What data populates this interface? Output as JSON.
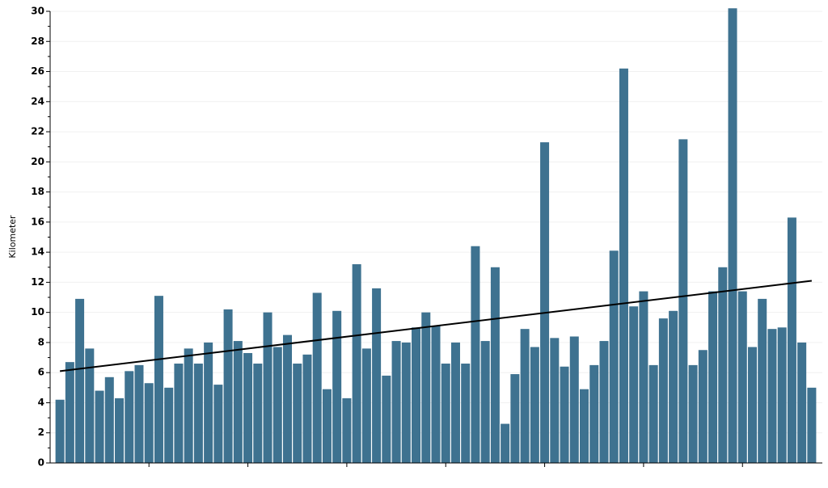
{
  "chart_data": {
    "type": "bar",
    "y_label": "Kilometer",
    "color": "#3e7290",
    "categories": [
      null,
      null,
      null,
      null,
      null,
      null,
      null,
      null,
      null,
      null,
      null,
      null,
      null,
      null,
      null,
      null,
      null,
      null,
      null,
      null,
      null,
      null,
      null,
      null,
      null,
      null,
      null,
      null,
      null,
      null,
      null,
      null,
      null,
      null,
      null,
      null,
      null,
      null,
      null,
      null,
      null,
      null,
      null,
      null,
      null,
      null,
      null,
      null,
      null,
      null,
      null,
      null,
      null,
      null,
      null,
      null,
      null,
      null,
      null,
      null,
      null,
      null,
      null,
      null,
      null,
      null,
      null,
      null,
      null,
      null,
      null,
      null,
      null,
      null,
      null,
      null,
      null
    ],
    "values": [
      4.2,
      6.7,
      10.9,
      7.6,
      4.8,
      5.7,
      4.3,
      6.1,
      6.5,
      5.3,
      11.1,
      5.0,
      6.6,
      7.6,
      6.6,
      8.0,
      5.2,
      10.2,
      8.1,
      7.3,
      6.6,
      10.0,
      7.7,
      8.5,
      6.6,
      7.2,
      11.3,
      4.9,
      10.1,
      4.3,
      13.2,
      7.6,
      11.6,
      5.8,
      8.1,
      8.0,
      9.0,
      10.0,
      9.1,
      6.6,
      8.0,
      6.6,
      14.4,
      8.1,
      13.0,
      2.6,
      5.9,
      8.9,
      7.7,
      21.3,
      8.3,
      6.4,
      8.4,
      4.9,
      6.5,
      8.1,
      14.1,
      26.2,
      10.4,
      11.4,
      6.5,
      9.6,
      10.1,
      21.5,
      6.5,
      7.5,
      11.4,
      13.0,
      30.2,
      11.4,
      7.7,
      10.9,
      8.9,
      9.0,
      16.3,
      8.0,
      5.0
    ],
    "trendline": {
      "color": "#000000",
      "values": [
        6.1,
        12.1
      ]
    },
    "ylim": [
      0,
      30
    ],
    "yticks": [
      0,
      2,
      4,
      6,
      8,
      10,
      12,
      14,
      16,
      18,
      20,
      22,
      24,
      26,
      28,
      30
    ],
    "grid": true
  }
}
